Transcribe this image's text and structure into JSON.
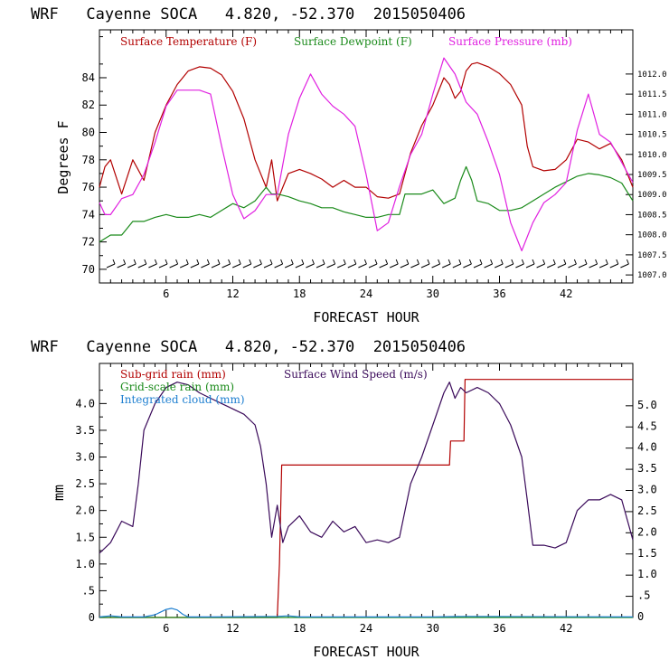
{
  "chart_data": [
    {
      "type": "line",
      "title": "WRF   Cayenne SOCA   4.820, -52.370  2015050406",
      "xlabel": "FORECAST HOUR",
      "ylabel": "Degrees F",
      "xlim": [
        0,
        48
      ],
      "ylim": [
        69,
        87.5
      ],
      "y2lim": [
        1006.8,
        1013.1
      ],
      "x_ticks": [
        "6",
        "12",
        "18",
        "24",
        "30",
        "36",
        "42"
      ],
      "x_tick_values": [
        6,
        12,
        18,
        24,
        30,
        36,
        42
      ],
      "y_ticks": [
        "70",
        "72",
        "74",
        "76",
        "78",
        "80",
        "82",
        "84"
      ],
      "y_tick_values": [
        70,
        72,
        74,
        76,
        78,
        80,
        82,
        84
      ],
      "y2_ticks": [
        "1007.0",
        "1007.5",
        "1008.0",
        "1008.5",
        "1009.0",
        "1009.5",
        "1010.0",
        "1010.5",
        "1011.0",
        "1011.5",
        "1012.0"
      ],
      "y2_tick_values": [
        1007.0,
        1007.5,
        1008.0,
        1008.5,
        1009.0,
        1009.5,
        1010.0,
        1010.5,
        1011.0,
        1011.5,
        1012.0
      ],
      "legend": [
        "Surface Temperature (F)",
        "Surface Dewpoint (F)",
        "Surface Pressure (mb)"
      ],
      "colors": {
        "temperature": "#b20000",
        "dewpoint": "#1a8a1a",
        "pressure": "#e020e0",
        "wind_barbs": "#000000"
      },
      "series": [
        {
          "name": "Surface Temperature (F)",
          "axis": "left",
          "x": [
            0,
            0.5,
            1,
            2,
            3,
            4,
            5,
            6,
            7,
            8,
            9,
            10,
            11,
            12,
            13,
            14,
            15,
            15.5,
            16,
            16.5,
            17,
            18,
            19,
            20,
            21,
            22,
            23,
            24,
            25,
            26,
            27,
            28,
            29,
            30,
            31,
            31.5,
            32,
            32.5,
            33,
            33.5,
            34,
            35,
            36,
            37,
            38,
            38.5,
            39,
            40,
            41,
            42,
            43,
            44,
            45,
            46,
            47,
            48
          ],
          "values": [
            76,
            77.5,
            78,
            75.5,
            78,
            76.5,
            80,
            82,
            83.5,
            84.5,
            84.8,
            84.7,
            84.2,
            83,
            81,
            78,
            76,
            78,
            75,
            76,
            77,
            77.3,
            77,
            76.6,
            76,
            76.5,
            76,
            76,
            75.3,
            75.2,
            75.5,
            78.5,
            80.5,
            82,
            84,
            83.5,
            82.5,
            83,
            84.5,
            85,
            85.1,
            84.8,
            84.3,
            83.5,
            82,
            79,
            77.5,
            77.2,
            77.3,
            78,
            79.5,
            79.3,
            78.8,
            79.2,
            78,
            76
          ]
        },
        {
          "name": "Surface Dewpoint (F)",
          "axis": "left",
          "x": [
            0,
            1,
            2,
            3,
            4,
            5,
            6,
            7,
            8,
            9,
            10,
            11,
            12,
            13,
            14,
            15,
            15.5,
            16,
            17,
            18,
            19,
            20,
            21,
            22,
            23,
            24,
            25,
            26,
            27,
            27.5,
            28,
            29,
            30,
            31,
            32,
            32.5,
            33,
            33.5,
            34,
            35,
            36,
            37,
            38,
            39,
            40,
            41,
            42,
            43,
            44,
            45,
            46,
            47,
            48
          ],
          "values": [
            72,
            72.5,
            72.5,
            73.5,
            73.5,
            73.8,
            74,
            73.8,
            73.8,
            74,
            73.8,
            74.3,
            74.8,
            74.5,
            75,
            76,
            75.5,
            75.5,
            75.3,
            75,
            74.8,
            74.5,
            74.5,
            74.2,
            74,
            73.8,
            73.8,
            74,
            74,
            75.5,
            75.5,
            75.5,
            75.8,
            74.8,
            75.2,
            76.5,
            77.5,
            76.5,
            75,
            74.8,
            74.3,
            74.3,
            74.5,
            75,
            75.5,
            76,
            76.4,
            76.8,
            77,
            76.9,
            76.7,
            76.3,
            75
          ]
        },
        {
          "name": "Surface Pressure (mb)",
          "axis": "right",
          "x": [
            0,
            0.5,
            1,
            2,
            3,
            4,
            5,
            6,
            7,
            8,
            9,
            10,
            11,
            12,
            13,
            14,
            15,
            16,
            17,
            18,
            19,
            20,
            21,
            22,
            23,
            24,
            25,
            26,
            27,
            28,
            29,
            30,
            31,
            32,
            33,
            34,
            35,
            36,
            37,
            38,
            39,
            40,
            41,
            42,
            43,
            44,
            45,
            46,
            47,
            48
          ],
          "values": [
            1008.8,
            1008.5,
            1008.5,
            1008.9,
            1009.0,
            1009.5,
            1010.3,
            1011.2,
            1011.6,
            1011.6,
            1011.6,
            1011.5,
            1010.2,
            1009.0,
            1008.4,
            1008.6,
            1009.0,
            1009.0,
            1010.5,
            1011.4,
            1012.0,
            1011.5,
            1011.2,
            1011.0,
            1010.7,
            1009.5,
            1008.1,
            1008.3,
            1009.2,
            1010.0,
            1010.5,
            1011.5,
            1012.4,
            1012.0,
            1011.3,
            1011.0,
            1010.3,
            1009.5,
            1008.3,
            1007.6,
            1008.3,
            1008.8,
            1009.0,
            1009.3,
            1010.6,
            1011.5,
            1010.5,
            1010.3,
            1009.8,
            1009.3
          ]
        }
      ]
    },
    {
      "type": "line",
      "title": "WRF   Cayenne SOCA   4.820, -52.370  2015050406",
      "xlabel": "FORECAST HOUR",
      "ylabel": "mm",
      "xlim": [
        0,
        48
      ],
      "ylim": [
        0,
        4.75
      ],
      "y2lim": [
        0,
        6.0
      ],
      "x_ticks": [
        "6",
        "12",
        "18",
        "24",
        "30",
        "36",
        "42"
      ],
      "x_tick_values": [
        6,
        12,
        18,
        24,
        30,
        36,
        42
      ],
      "y_ticks": [
        "0",
        ".5",
        "1.0",
        "1.5",
        "2.0",
        "2.5",
        "3.0",
        "3.5",
        "4.0"
      ],
      "y_tick_values": [
        0,
        0.5,
        1.0,
        1.5,
        2.0,
        2.5,
        3.0,
        3.5,
        4.0
      ],
      "y2_ticks": [
        "0",
        ".5",
        "1.0",
        "1.5",
        "2.0",
        "2.5",
        "3.0",
        "3.5",
        "4.0",
        "4.5",
        "5.0"
      ],
      "y2_tick_values": [
        0,
        0.5,
        1.0,
        1.5,
        2.0,
        2.5,
        3.0,
        3.5,
        4.0,
        4.5,
        5.0
      ],
      "legend": [
        "Sub-grid rain (mm)",
        "Surface Wind Speed (m/s)",
        "Grid-scale rain (mm)",
        "Integrated cloud (mm)"
      ],
      "colors": {
        "subgrid": "#b20000",
        "wind": "#3a0a5a",
        "gridscale": "#1a8a1a",
        "cloud": "#1e7fd0"
      },
      "series": [
        {
          "name": "Sub-grid rain (mm)",
          "axis": "left",
          "x": [
            0,
            16,
            16.2,
            16.4,
            31.5,
            31.6,
            32.8,
            32.9,
            48
          ],
          "values": [
            0,
            0,
            1.0,
            2.85,
            2.85,
            3.3,
            3.3,
            4.45,
            4.45
          ]
        },
        {
          "name": "Surface Wind Speed (m/s)",
          "axis": "left",
          "x": [
            0,
            1,
            2,
            3,
            3.5,
            4,
            5,
            6,
            7,
            8,
            9,
            10,
            11,
            12,
            13,
            14,
            14.5,
            15,
            15.5,
            16,
            16.5,
            17,
            18,
            19,
            20,
            21,
            22,
            23,
            24,
            25,
            26,
            27,
            27.5,
            28,
            29,
            30,
            31,
            31.5,
            32,
            32.5,
            33,
            34,
            35,
            36,
            37,
            38,
            38.5,
            39,
            40,
            41,
            42,
            43,
            44,
            45,
            46,
            47,
            48
          ],
          "values": [
            1.2,
            1.4,
            1.8,
            1.7,
            2.5,
            3.5,
            4.0,
            4.3,
            4.4,
            4.35,
            4.2,
            4.1,
            4.0,
            3.9,
            3.8,
            3.6,
            3.2,
            2.5,
            1.5,
            2.1,
            1.4,
            1.7,
            1.9,
            1.6,
            1.5,
            1.8,
            1.6,
            1.7,
            1.4,
            1.45,
            1.4,
            1.5,
            2.0,
            2.5,
            3.0,
            3.6,
            4.2,
            4.4,
            4.1,
            4.3,
            4.2,
            4.3,
            4.2,
            4.0,
            3.6,
            3.0,
            2.2,
            1.35,
            1.35,
            1.3,
            1.4,
            2.0,
            2.2,
            2.2,
            2.3,
            2.2,
            1.45
          ]
        },
        {
          "name": "Grid-scale rain (mm)",
          "axis": "left",
          "x": [
            0,
            48
          ],
          "values": [
            0,
            0
          ]
        },
        {
          "name": "Integrated cloud (mm)",
          "axis": "left",
          "x": [
            0,
            1,
            2,
            4,
            5,
            5.5,
            6,
            6.5,
            7,
            7.5,
            8,
            10,
            16,
            17,
            18,
            30,
            33,
            48
          ],
          "values": [
            0.01,
            0.03,
            0.01,
            0.01,
            0.05,
            0.1,
            0.15,
            0.17,
            0.14,
            0.06,
            0.01,
            0.01,
            0.02,
            0.03,
            0.01,
            0.01,
            0.02,
            0.01
          ]
        }
      ]
    }
  ]
}
